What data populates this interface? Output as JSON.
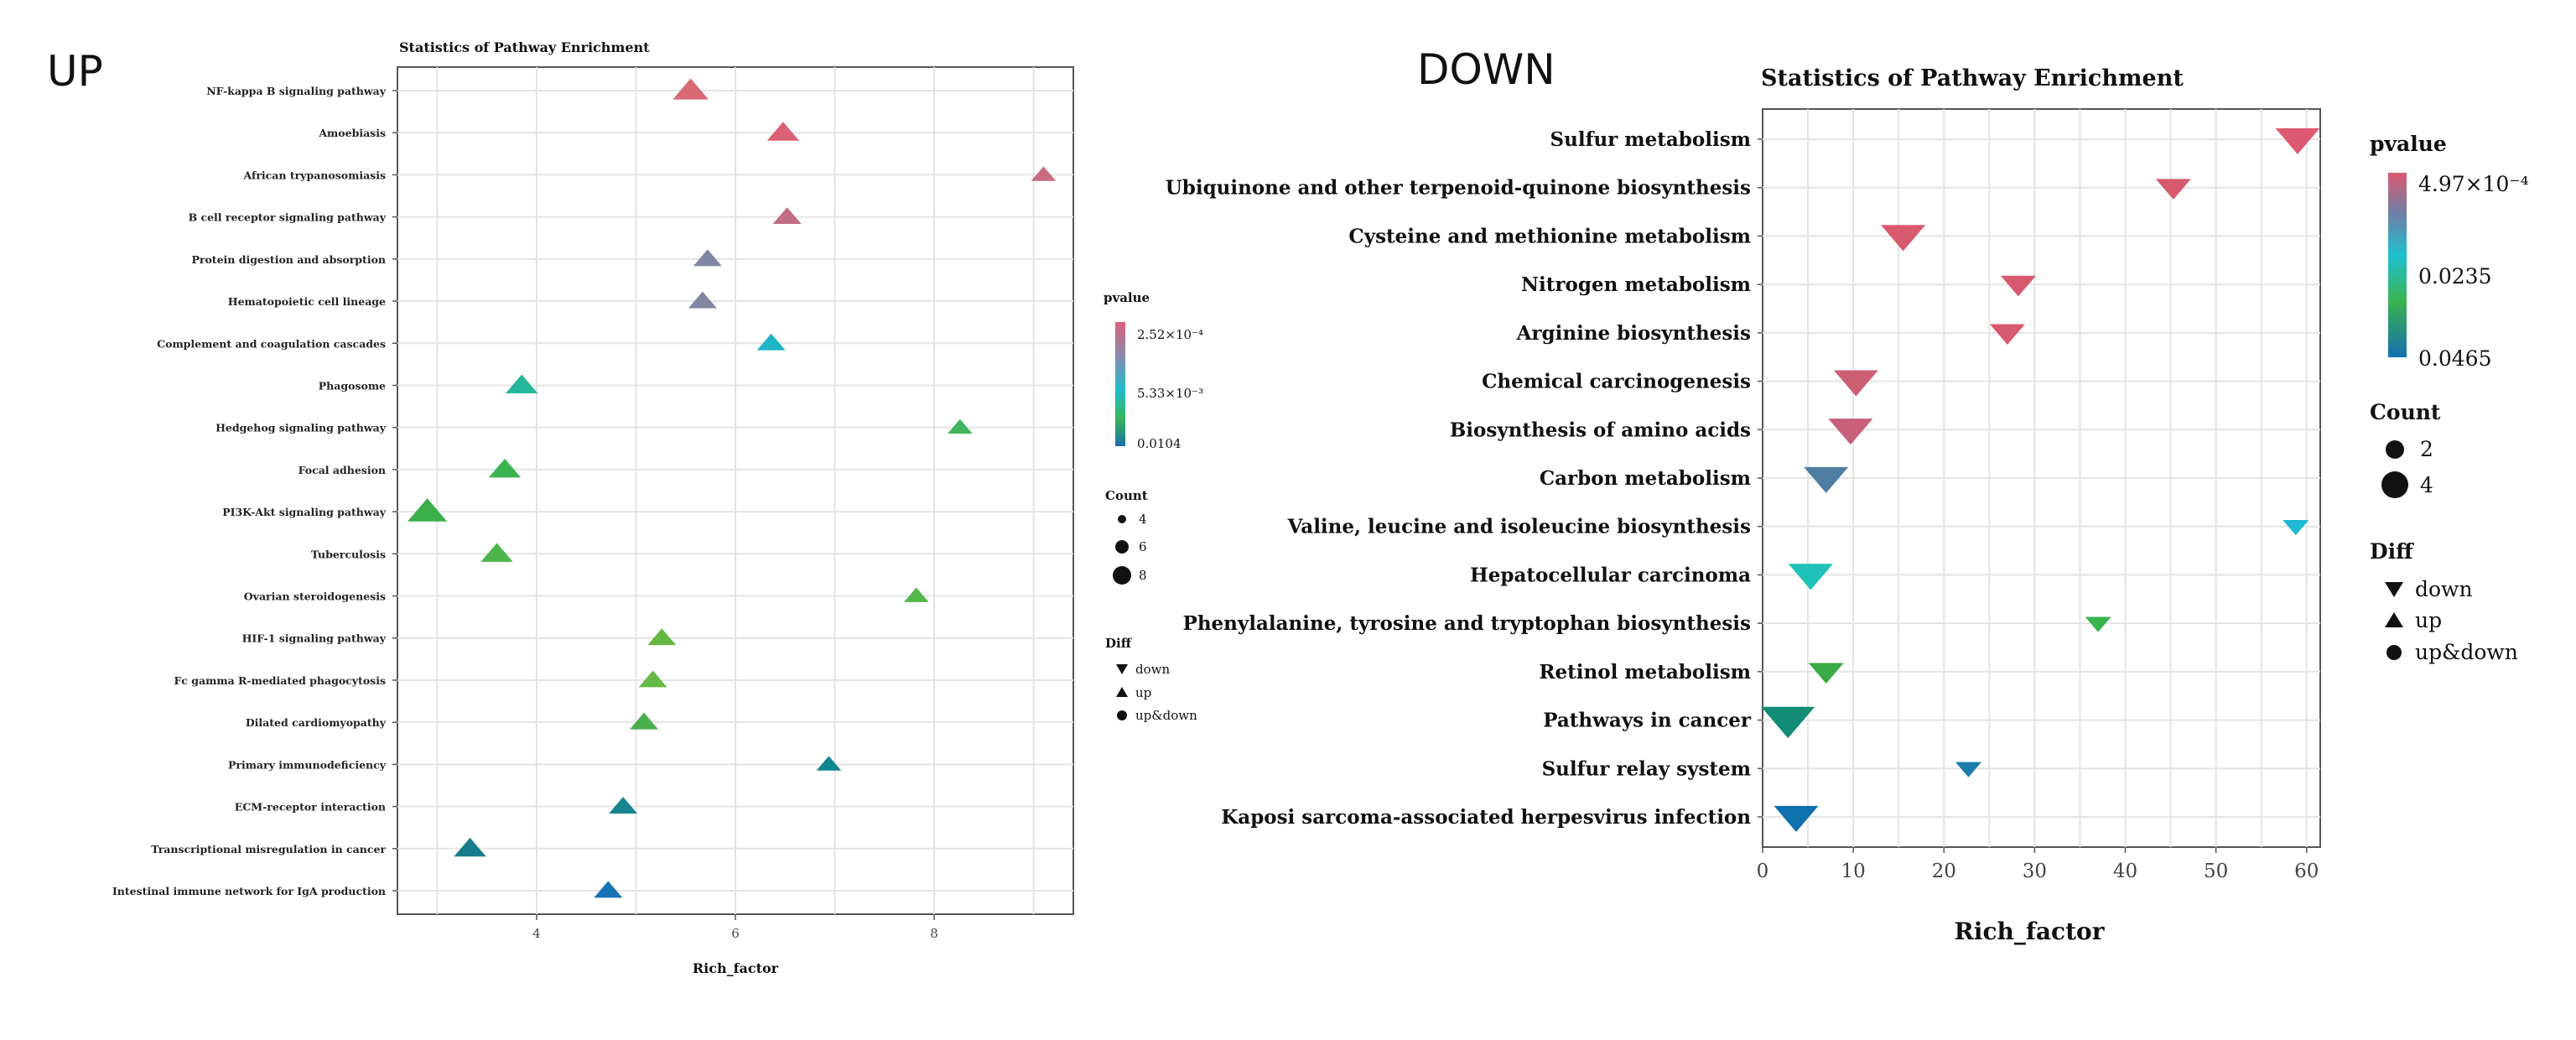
{
  "chart_data": [
    {
      "type": "scatter",
      "panel_label": "UP",
      "title": "Statistics of Pathway Enrichment",
      "xlabel": "Rich_factor",
      "ylabel": "",
      "xlim": [
        2.6,
        9.4
      ],
      "xticks": [
        4,
        6,
        8
      ],
      "xtick_labels": [
        "4",
        "6",
        "8"
      ],
      "categories": [
        "NF-kappa B signaling pathway",
        "Amoebiasis",
        "African trypanosomiasis",
        "B cell receptor signaling pathway",
        "Protein digestion and absorption",
        "Hematopoietic cell lineage",
        "Complement and coagulation cascades",
        "Phagosome",
        "Hedgehog signaling pathway",
        "Focal adhesion",
        "PI3K-Akt signaling pathway",
        "Tuberculosis",
        "Ovarian steroidogenesis",
        "HIF-1 signaling pathway",
        "Fc gamma R-mediated phagocytosis",
        "Dilated cardiomyopathy",
        "Primary immunodeficiency",
        "ECM-receptor interaction",
        "Transcriptional misregulation in cancer",
        "Intestinal immune network for IgA production"
      ],
      "x": [
        5.55,
        6.48,
        9.1,
        6.52,
        5.72,
        5.67,
        6.36,
        3.85,
        8.26,
        3.68,
        2.9,
        3.6,
        7.82,
        5.26,
        5.17,
        5.08,
        6.94,
        4.87,
        3.33,
        4.72
      ],
      "count": [
        7,
        6,
        4,
        5,
        5,
        5,
        5,
        6,
        4,
        6,
        8,
        6,
        4,
        5,
        5,
        5,
        4,
        5,
        6,
        5
      ],
      "diff": [
        "up",
        "up",
        "up",
        "up",
        "up",
        "up",
        "up",
        "up",
        "up",
        "up",
        "up",
        "up",
        "up",
        "up",
        "up",
        "up",
        "up",
        "up",
        "up",
        "up"
      ],
      "color": [
        "#d86a76",
        "#d96274",
        "#c96c80",
        "#c06e82",
        "#7e86a2",
        "#7e86a2",
        "#1fb5c6",
        "#25b79a",
        "#3fb45c",
        "#3db352",
        "#3aaf4a",
        "#4eb54c",
        "#55b74a",
        "#64b843",
        "#66b946",
        "#4aae4e",
        "#12868e",
        "#19838e",
        "#177c8a",
        "#1674b4"
      ],
      "legend": {
        "color_title": "pvalue",
        "color_labels": [
          "2.52×10⁻⁴",
          "5.33×10⁻³",
          "0.0104"
        ],
        "size_title": "Count",
        "size_labels": [
          "4",
          "6",
          "8"
        ],
        "shape_title": "Diff",
        "shape_labels": [
          "down",
          "up",
          "up&down"
        ]
      }
    },
    {
      "type": "scatter",
      "panel_label": "DOWN",
      "title": "Statistics of Pathway Enrichment",
      "xlabel": "Rich_factor",
      "ylabel": "",
      "xlim": [
        0,
        61.5
      ],
      "xticks": [
        0,
        10,
        20,
        30,
        40,
        50,
        60
      ],
      "xtick_labels": [
        "0",
        "10",
        "20",
        "30",
        "40",
        "50",
        "60"
      ],
      "categories": [
        "Sulfur metabolism",
        "Ubiquinone and other terpenoid-quinone biosynthesis",
        "Cysteine and methionine metabolism",
        "Nitrogen metabolism",
        "Arginine biosynthesis",
        "Chemical carcinogenesis",
        "Biosynthesis of amino acids",
        "Carbon metabolism",
        "Valine, leucine and isoleucine biosynthesis",
        "Hepatocellular carcinoma",
        "Phenylalanine, tyrosine and tryptophan biosynthesis",
        "Retinol metabolism",
        "Pathways in cancer",
        "Sulfur relay system",
        "Kaposi sarcoma-associated herpesvirus infection"
      ],
      "x": [
        59,
        45.3,
        15.5,
        28.2,
        27,
        10.3,
        9.7,
        7,
        58.8,
        5.3,
        37,
        7,
        2.8,
        22.7,
        3.7
      ],
      "count": [
        3,
        2,
        3,
        2,
        2,
        3,
        3,
        3,
        1,
        3,
        1,
        2,
        4,
        1,
        3
      ],
      "diff": [
        "down",
        "down",
        "down",
        "down",
        "down",
        "down",
        "down",
        "down",
        "down",
        "down",
        "down",
        "down",
        "down",
        "down",
        "down"
      ],
      "color": [
        "#dc5a70",
        "#d85a6e",
        "#d85a6e",
        "#d85a6e",
        "#d85a6e",
        "#cc5e74",
        "#c8607a",
        "#4e7ea2",
        "#1fb8d2",
        "#1ec2b6",
        "#3ab24e",
        "#3aaa44",
        "#138c76",
        "#1a7ca8",
        "#0e70ac"
      ],
      "legend": {
        "color_title": "pvalue",
        "color_labels": [
          "4.97×10⁻⁴",
          "0.0235",
          "0.0465"
        ],
        "size_title": "Count",
        "size_labels": [
          "2",
          "4"
        ],
        "shape_title": "Diff",
        "shape_labels": [
          "down",
          "up",
          "up&down"
        ]
      }
    }
  ]
}
